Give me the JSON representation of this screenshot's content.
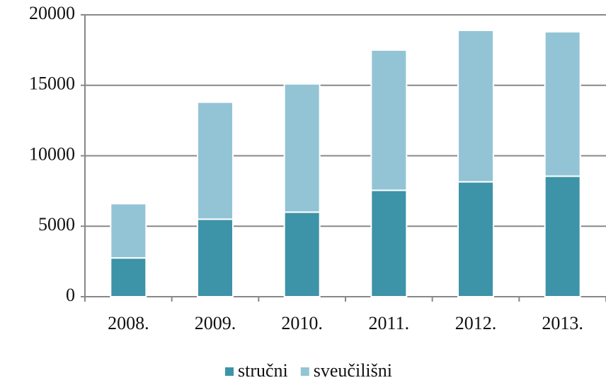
{
  "chart_data": {
    "type": "stacked_bar",
    "categories": [
      "2008.",
      "2009.",
      "2010.",
      "2011.",
      "2012.",
      "2013."
    ],
    "series": [
      {
        "name": "stručni",
        "color": "#3d93a8",
        "values": [
          2750,
          5500,
          6000,
          7550,
          8150,
          8550
        ]
      },
      {
        "name": "sveučilišni",
        "color": "#93c4d6",
        "values": [
          3850,
          8300,
          9100,
          9950,
          10750,
          10250
        ]
      }
    ],
    "ylim": [
      0,
      20000
    ],
    "yticks": [
      0,
      5000,
      10000,
      15000,
      20000
    ],
    "grid": true,
    "legend": "bottom"
  }
}
